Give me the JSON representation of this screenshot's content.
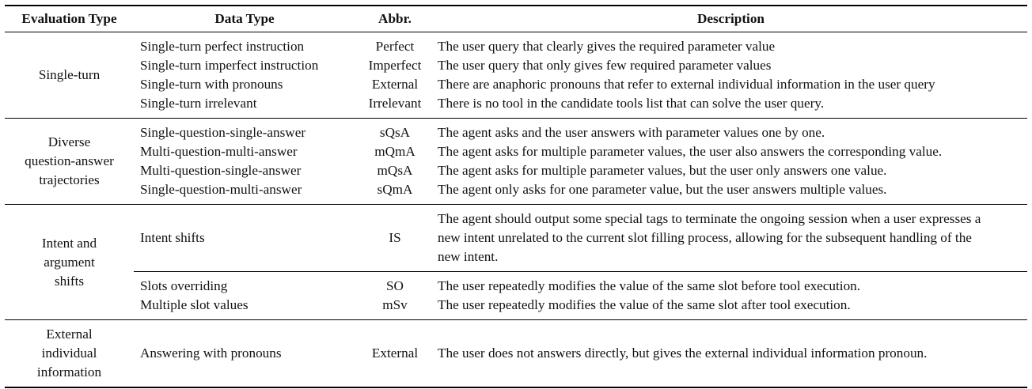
{
  "headers": [
    "Evaluation Type",
    "Data Type",
    "Abbr.",
    "Description"
  ],
  "groups": [
    {
      "eval_type": "Single-turn",
      "rows": [
        {
          "data_type": "Single-turn perfect instruction",
          "abbr": "Perfect",
          "desc": "The user query that clearly gives the required parameter value"
        },
        {
          "data_type": "Single-turn imperfect instruction",
          "abbr": "Imperfect",
          "desc": "The user query that only gives few required parameter values"
        },
        {
          "data_type": "Single-turn with pronouns",
          "abbr": "External",
          "desc": "There are anaphoric pronouns that refer to external individual information in the user query"
        },
        {
          "data_type": "Single-turn irrelevant",
          "abbr": "Irrelevant",
          "desc": "There is no tool in the candidate tools list that can solve the user query."
        }
      ]
    },
    {
      "eval_type": "Diverse question-answer trajectories",
      "eval_type_lines": [
        "Diverse",
        "question-answer",
        "trajectories"
      ],
      "rows": [
        {
          "data_type": "Single-question-single-answer",
          "abbr": "sQsA",
          "desc": "The agent asks and the user answers with parameter values one by one."
        },
        {
          "data_type": "Multi-question-multi-answer",
          "abbr": "mQmA",
          "desc": "The agent asks for multiple parameter values, the user also answers the corresponding value."
        },
        {
          "data_type": "Multi-question-single-answer",
          "abbr": "mQsA",
          "desc": "The agent asks for multiple parameter values, but the user only answers one value."
        },
        {
          "data_type": "Single-question-multi-answer",
          "abbr": "sQmA",
          "desc": "The agent only asks for one parameter value, but the user answers multiple values."
        }
      ]
    },
    {
      "eval_type": "Intent and argument shifts",
      "eval_type_lines": [
        "Intent and",
        "argument",
        "shifts"
      ],
      "rows": [
        {
          "data_type": "Intent shifts",
          "abbr": "IS",
          "desc": "The agent should output some special tags to terminate the ongoing session when a user expresses a new intent unrelated to the current slot filling process, allowing for the subsequent handling of the new intent."
        },
        {
          "data_type": "Slots overriding",
          "abbr": "SO",
          "desc": "The user repeatedly modifies the value of the same slot before tool execution."
        },
        {
          "data_type": "Multiple slot values",
          "abbr": "mSv",
          "desc": "The user repeatedly modifies the value of the same slot after tool execution."
        }
      ]
    },
    {
      "eval_type": "External individual information",
      "eval_type_lines": [
        "External",
        "individual",
        "information"
      ],
      "rows": [
        {
          "data_type": "Answering with pronouns",
          "abbr": "External",
          "desc": "The user does not answers directly, but gives the external individual information pronoun."
        }
      ]
    }
  ]
}
